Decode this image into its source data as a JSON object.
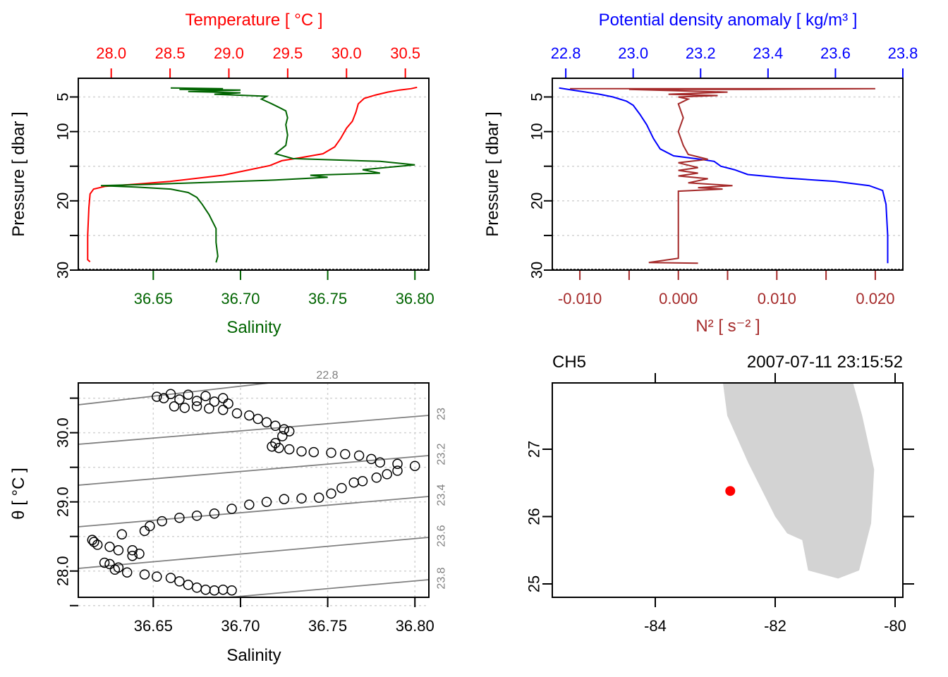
{
  "chart_data": [
    {
      "id": "profile-ts",
      "type": "line",
      "title": "",
      "top_axis": {
        "label": "Temperature [ °C ]",
        "ticks": [
          "28.0",
          "28.5",
          "29.0",
          "29.5",
          "30.0",
          "30.5"
        ],
        "range": [
          27.72,
          30.7
        ],
        "color": "#ff0000"
      },
      "bottom_axis": {
        "label": "Salinity",
        "ticks": [
          "36.65",
          "36.70",
          "36.75",
          "36.80"
        ],
        "range": [
          36.607,
          36.808
        ],
        "color": "#006400"
      },
      "left_axis": {
        "label": "Pressure [ dbar ]",
        "ticks": [
          "5",
          "10",
          "",
          "20",
          "",
          "30"
        ],
        "tick_values": [
          5,
          10,
          15,
          20,
          25,
          30
        ],
        "range": [
          30,
          2.3
        ],
        "reversed": true
      },
      "grid": true,
      "series": [
        {
          "name": "Temperature",
          "axis": "top",
          "color": "#ff0000",
          "points": [
            [
              30.6,
              3.6
            ],
            [
              30.55,
              3.8
            ],
            [
              30.45,
              4.0
            ],
            [
              30.35,
              4.3
            ],
            [
              30.25,
              4.7
            ],
            [
              30.15,
              5.2
            ],
            [
              30.1,
              6.0
            ],
            [
              30.08,
              7.2
            ],
            [
              30.05,
              8.5
            ],
            [
              30.0,
              9.5
            ],
            [
              29.95,
              11
            ],
            [
              29.9,
              12.2
            ],
            [
              29.8,
              13.2
            ],
            [
              29.6,
              13.8
            ],
            [
              29.45,
              14.2
            ],
            [
              29.35,
              14.9
            ],
            [
              29.15,
              15.6
            ],
            [
              28.95,
              16.3
            ],
            [
              28.7,
              16.8
            ],
            [
              28.5,
              17.2
            ],
            [
              28.2,
              17.6
            ],
            [
              27.95,
              17.9
            ],
            [
              27.85,
              18.3
            ],
            [
              27.82,
              19
            ],
            [
              27.81,
              21
            ],
            [
              27.8,
              25
            ],
            [
              27.8,
              28.5
            ],
            [
              27.82,
              28.8
            ]
          ]
        },
        {
          "name": "Salinity",
          "axis": "bottom",
          "color": "#006400",
          "points": [
            [
              36.66,
              3.7
            ],
            [
              36.69,
              3.8
            ],
            [
              36.665,
              3.9
            ],
            [
              36.7,
              4.0
            ],
            [
              36.67,
              4.2
            ],
            [
              36.7,
              4.4
            ],
            [
              36.685,
              4.6
            ],
            [
              36.715,
              4.9
            ],
            [
              36.712,
              5.3
            ],
            [
              36.718,
              6.0
            ],
            [
              36.722,
              6.5
            ],
            [
              36.726,
              7.0
            ],
            [
              36.727,
              8.0
            ],
            [
              36.726,
              9.0
            ],
            [
              36.727,
              10.5
            ],
            [
              36.726,
              12.0
            ],
            [
              36.72,
              13.2
            ],
            [
              36.73,
              13.9
            ],
            [
              36.78,
              14.3
            ],
            [
              36.8,
              14.8
            ],
            [
              36.77,
              15.5
            ],
            [
              36.78,
              16.0
            ],
            [
              36.74,
              16.3
            ],
            [
              36.75,
              16.6
            ],
            [
              36.72,
              17.0
            ],
            [
              36.65,
              17.6
            ],
            [
              36.62,
              17.8
            ],
            [
              36.64,
              18.0
            ],
            [
              36.66,
              18.3
            ],
            [
              36.67,
              18.8
            ],
            [
              36.675,
              19.5
            ],
            [
              36.678,
              20.5
            ],
            [
              36.682,
              22
            ],
            [
              36.686,
              24
            ],
            [
              36.686,
              26
            ],
            [
              36.687,
              28
            ],
            [
              36.686,
              28.9
            ]
          ]
        }
      ]
    },
    {
      "id": "profile-density",
      "type": "line",
      "top_axis": {
        "label": "Potential density anomaly [ kg/m³ ]",
        "ticks": [
          "22.8",
          "23.0",
          "23.2",
          "23.4",
          "23.6",
          "23.8"
        ],
        "range": [
          22.76,
          23.8
        ],
        "color": "#0000ff"
      },
      "bottom_axis": {
        "label": "N² [ s⁻² ]",
        "ticks": [
          "-0.010",
          "",
          "0.000",
          "",
          "0.010",
          "",
          "0.020"
        ],
        "tick_values": [
          -0.01,
          -0.005,
          0,
          0.005,
          0.01,
          0.015,
          0.02
        ],
        "range": [
          -0.0128,
          0.0228
        ],
        "color": "#a52a2a"
      },
      "left_axis": {
        "label": "Pressure [ dbar ]",
        "ticks": [
          "5",
          "10",
          "",
          "20",
          "",
          "30"
        ],
        "tick_values": [
          5,
          10,
          15,
          20,
          25,
          30
        ],
        "range": [
          30,
          2.3
        ],
        "reversed": true
      },
      "grid": true,
      "series": [
        {
          "name": "Potential density anomaly",
          "axis": "top",
          "color": "#0000ff",
          "points": [
            [
              22.78,
              3.7
            ],
            [
              22.82,
              4.0
            ],
            [
              22.86,
              4.3
            ],
            [
              22.9,
              4.6
            ],
            [
              22.94,
              5.0
            ],
            [
              22.98,
              5.6
            ],
            [
              23.0,
              6.2
            ],
            [
              23.02,
              7.5
            ],
            [
              23.04,
              9.0
            ],
            [
              23.06,
              11.0
            ],
            [
              23.08,
              12.5
            ],
            [
              23.12,
              13.5
            ],
            [
              23.2,
              14.0
            ],
            [
              23.24,
              14.3
            ],
            [
              23.26,
              15.0
            ],
            [
              23.3,
              15.5
            ],
            [
              23.34,
              16.2
            ],
            [
              23.45,
              16.7
            ],
            [
              23.6,
              17.2
            ],
            [
              23.7,
              17.8
            ],
            [
              23.74,
              18.5
            ],
            [
              23.75,
              20.5
            ],
            [
              23.755,
              25
            ],
            [
              23.755,
              29
            ]
          ]
        },
        {
          "name": "N2",
          "axis": "bottom",
          "color": "#a52a2a",
          "points": [
            [
              -0.011,
              3.8
            ],
            [
              0.02,
              3.8
            ],
            [
              0.008,
              3.9
            ],
            [
              -0.005,
              3.9
            ],
            [
              0.0,
              4.1
            ],
            [
              0.005,
              4.3
            ],
            [
              -0.001,
              4.6
            ],
            [
              0.004,
              4.8
            ],
            [
              0.0,
              5.0
            ],
            [
              0.001,
              5.3
            ],
            [
              0.0,
              6
            ],
            [
              0.0005,
              8
            ],
            [
              0.0,
              10
            ],
            [
              0.0005,
              12
            ],
            [
              0.001,
              13.3
            ],
            [
              0.003,
              14.0
            ],
            [
              0.0,
              14.5
            ],
            [
              0.002,
              15.2
            ],
            [
              0.0,
              15.6
            ],
            [
              0.002,
              16.0
            ],
            [
              0.0,
              16.4
            ],
            [
              0.003,
              16.8
            ],
            [
              0.001,
              17.4
            ],
            [
              0.0055,
              17.8
            ],
            [
              0.002,
              18.1
            ],
            [
              0.0045,
              18.3
            ],
            [
              0.0,
              18.6
            ],
            [
              0.0,
              20
            ],
            [
              0.0,
              24
            ],
            [
              0.0,
              28.3
            ],
            [
              -0.003,
              28.9
            ],
            [
              0.002,
              29.0
            ]
          ]
        }
      ]
    },
    {
      "id": "ts-diagram",
      "type": "scatter",
      "xlabel": "Salinity",
      "ylabel": "θ [ °C ]",
      "x_ticks": [
        "36.65",
        "36.70",
        "36.75",
        "36.80"
      ],
      "x_tick_values": [
        36.65,
        36.7,
        36.75,
        36.8
      ],
      "y_ticks": [
        "28.0",
        "29.0",
        "30.0"
      ],
      "y_tick_values": [
        27.5,
        28.0,
        28.5,
        29.0,
        29.5,
        30.0,
        30.5
      ],
      "xlim": [
        36.607,
        36.808
      ],
      "ylim": [
        27.62,
        30.72
      ],
      "grid": true,
      "isopycnals": {
        "labels": [
          "22.8",
          "23",
          "23.2",
          "23.4",
          "23.6",
          "23.8"
        ],
        "color": "#808080"
      },
      "points": [
        [
          36.652,
          30.52
        ],
        [
          36.66,
          30.56
        ],
        [
          36.67,
          30.55
        ],
        [
          36.68,
          30.53
        ],
        [
          36.69,
          30.5
        ],
        [
          36.656,
          30.5
        ],
        [
          36.665,
          30.48
        ],
        [
          36.675,
          30.46
        ],
        [
          36.685,
          30.45
        ],
        [
          36.693,
          30.42
        ],
        [
          36.662,
          30.38
        ],
        [
          36.668,
          30.36
        ],
        [
          36.675,
          30.38
        ],
        [
          36.682,
          30.35
        ],
        [
          36.69,
          30.33
        ],
        [
          36.698,
          30.28
        ],
        [
          36.705,
          30.25
        ],
        [
          36.71,
          30.2
        ],
        [
          36.715,
          30.15
        ],
        [
          36.72,
          30.1
        ],
        [
          36.725,
          30.05
        ],
        [
          36.728,
          30.02
        ],
        [
          36.724,
          29.95
        ],
        [
          36.72,
          29.85
        ],
        [
          36.718,
          29.8
        ],
        [
          36.722,
          29.78
        ],
        [
          36.728,
          29.76
        ],
        [
          36.735,
          29.73
        ],
        [
          36.742,
          29.72
        ],
        [
          36.752,
          29.71
        ],
        [
          36.76,
          29.69
        ],
        [
          36.768,
          29.67
        ],
        [
          36.775,
          29.62
        ],
        [
          36.78,
          29.57
        ],
        [
          36.79,
          29.55
        ],
        [
          36.8,
          29.52
        ],
        [
          36.79,
          29.45
        ],
        [
          36.784,
          29.4
        ],
        [
          36.778,
          29.35
        ],
        [
          36.77,
          29.3
        ],
        [
          36.765,
          29.28
        ],
        [
          36.758,
          29.2
        ],
        [
          36.752,
          29.12
        ],
        [
          36.745,
          29.06
        ],
        [
          36.735,
          29.05
        ],
        [
          36.725,
          29.04
        ],
        [
          36.715,
          29.0
        ],
        [
          36.705,
          28.96
        ],
        [
          36.695,
          28.9
        ],
        [
          36.685,
          28.83
        ],
        [
          36.675,
          28.8
        ],
        [
          36.665,
          28.77
        ],
        [
          36.655,
          28.72
        ],
        [
          36.648,
          28.65
        ],
        [
          36.645,
          28.58
        ],
        [
          36.632,
          28.53
        ],
        [
          36.615,
          28.45
        ],
        [
          36.616,
          28.42
        ],
        [
          36.618,
          28.38
        ],
        [
          36.625,
          28.35
        ],
        [
          36.63,
          28.3
        ],
        [
          36.638,
          28.3
        ],
        [
          36.642,
          28.25
        ],
        [
          36.638,
          28.22
        ],
        [
          36.622,
          28.12
        ],
        [
          36.625,
          28.1
        ],
        [
          36.63,
          28.05
        ],
        [
          36.628,
          28.02
        ],
        [
          36.635,
          27.98
        ],
        [
          36.645,
          27.95
        ],
        [
          36.652,
          27.92
        ],
        [
          36.66,
          27.9
        ],
        [
          36.665,
          27.85
        ],
        [
          36.67,
          27.8
        ],
        [
          36.675,
          27.76
        ],
        [
          36.68,
          27.73
        ],
        [
          36.685,
          27.72
        ],
        [
          36.69,
          27.73
        ],
        [
          36.695,
          27.72
        ]
      ]
    },
    {
      "id": "station-map",
      "type": "scatter",
      "title_left": "CH5",
      "title_right": "2007-07-11 23:15:52",
      "x_ticks": [
        "-84",
        "-82",
        "-80"
      ],
      "x_tick_values": [
        -84,
        -82,
        -80
      ],
      "y_ticks": [
        "25",
        "26",
        "27"
      ],
      "y_tick_values": [
        25,
        26,
        27
      ],
      "xlim": [
        -85.7,
        -79.85
      ],
      "ylim": [
        24.8,
        27.98
      ],
      "land_color": "#d3d3d3",
      "station": {
        "lon": -82.75,
        "lat": 26.38,
        "color": "#ff0000"
      },
      "coastline": [
        [
          -82.87,
          27.98
        ],
        [
          -82.8,
          27.5
        ],
        [
          -82.45,
          26.8
        ],
        [
          -82.0,
          26.0
        ],
        [
          -81.8,
          25.75
        ],
        [
          -81.55,
          25.65
        ],
        [
          -81.45,
          25.2
        ],
        [
          -80.95,
          25.08
        ],
        [
          -80.6,
          25.2
        ],
        [
          -80.4,
          25.9
        ],
        [
          -80.35,
          26.7
        ],
        [
          -80.55,
          27.5
        ],
        [
          -80.7,
          27.98
        ]
      ]
    }
  ]
}
